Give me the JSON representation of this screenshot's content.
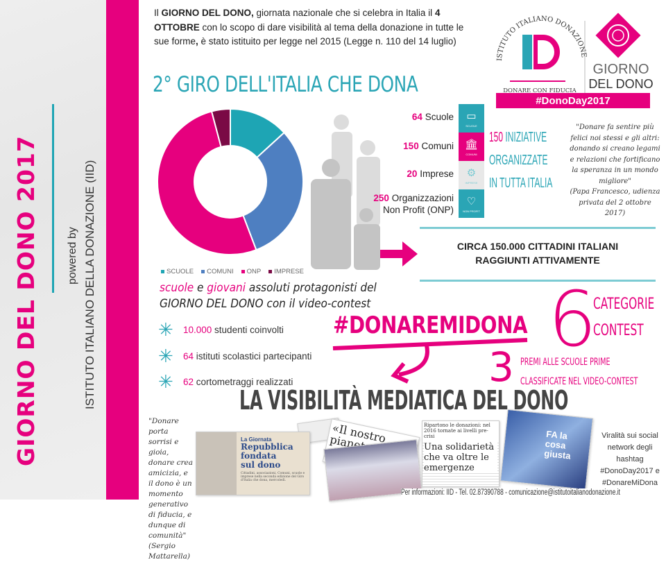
{
  "sidebar": {
    "title": "GIORNO DEL DONO 2017",
    "powered_by": "powered by",
    "organization": "ISTITUTO ITALIANO DELLA DONAZIONE (IID)"
  },
  "intro": {
    "part1": "Il ",
    "bold1": "GIORNO DEL DONO,",
    "part2": " giornata nazionale che si celebra in Italia il ",
    "bold2": "4 OTTOBRE",
    "part3": " con lo scopo di dare visibilità al tema della donazione in tutte le sue forme",
    "bold3": ",",
    "part4": " è stato istituito per legge nel 2015 (Legge n. 110 del 14 luglio)"
  },
  "title": "2° GIRO DELL'ITALIA CHE DONA",
  "logo": {
    "iid_arc": "ISTITUTO ITALIANO DONAZIONE",
    "iid_mark": "ID",
    "iid_tagline": "DONARE CON FIDUCIA",
    "gdd_line1": "GIORNO",
    "gdd_line2": "DEL DONO",
    "hashtag": "#DonoDay2017"
  },
  "chart_data": {
    "type": "pie",
    "variant": "donut",
    "categories": [
      "SCUOLE",
      "COMUNI",
      "ONP",
      "IMPRESE"
    ],
    "values": [
      64,
      150,
      250,
      20
    ],
    "colors": [
      "#1ea5b4",
      "#4e7fc1",
      "#e6007e",
      "#7a0a45"
    ],
    "legend": "bottom"
  },
  "stats": [
    {
      "number": "64",
      "label": "Scuole",
      "icon": "book-icon",
      "color": "#2aa5b5",
      "caption": "SCUOLE"
    },
    {
      "number": "150",
      "label": "Comuni",
      "icon": "town-hall-icon",
      "color": "#e6007e",
      "caption": "COMUNI"
    },
    {
      "number": "20",
      "label": "Imprese",
      "icon": "gears-icon",
      "color": "#e8e8e8",
      "caption": "IMPRESE"
    },
    {
      "number": "250",
      "label": "Organizzazioni",
      "label2": "Non Profit (ONP)",
      "icon": "heart-icon",
      "color": "#2aa5b5",
      "caption": "NON PROFIT"
    }
  ],
  "iniziative": {
    "number": "150",
    "line1": " INIZIATIVE",
    "line2": "ORGANIZZATE",
    "line3": "IN TUTTA ITALIA"
  },
  "quote_pope": {
    "text": "\"Donare fa sentire più felici noi stessi e gli altri: donando si creano legami e relazioni che fortificano la speranza in un mondo migliore\"",
    "source": "(Papa Francesco, udienza privata del 2 ottobre 2017)"
  },
  "reach": {
    "line1": "CIRCA 150.000 CITTADINI ITALIANI",
    "line2": "RAGGIUNTI ATTIVAMENTE"
  },
  "contest": {
    "w1": "scuole",
    "w2": " e ",
    "w3": "giovani",
    "w4": " assoluti protagonisti del",
    "line2": "GIORNO DEL DONO con il video-contest",
    "bullets": [
      {
        "number": "10.000",
        "text": " studenti coinvolti"
      },
      {
        "number": "64",
        "text": " istituti scolastici partecipanti"
      },
      {
        "number": "62",
        "text": " cortometraggi realizzati"
      }
    ],
    "hashtag": "#DONAREMIDONA",
    "categories_number": "6",
    "categories_line1": "CATEGORIE",
    "categories_line2": "CONTEST",
    "prizes_number": "3",
    "prizes_line1": "PREMI ALLE SCUOLE PRIME",
    "prizes_line2": "CLASSIFICATE NEL VIDEO-CONTEST"
  },
  "media": {
    "title": "LA VISIBILITÀ MEDIATICA DEL DONO",
    "quote": "\"Donare porta sorrisi e gioia, donare crea amicizia, e il dono è un momento generativo di fiducia, e dunque di comunità\"",
    "quote_source": "(Sergio Mattarella)",
    "clip1_kicker": "La Giornata",
    "clip1_headline": "Repubblica fondata sul dono",
    "clip1_body": "Cittadini, associazioni, Comuni, scuole e imprese nel­la seconda edizione del Giro d'Italia che dona, mercoledì.",
    "clip2_headline": "«Il nostro pianeta dono ricevuto da con",
    "clip3_headline": "Ripartono le donazioni: nel 2016 tornate ai livelli pre-crisi",
    "clip4_headline": "Una solidarietà che va oltre le emergenze",
    "clip5_caption": "FA la cosa giusta",
    "virality": "Viralità sui social network degli hashtag #DonoDay2017 e #DonareMiDona"
  },
  "footer": "Per informazioni: IID - Tel. 02.87390788 - comunicazione@istitutoitalianodonazione.it"
}
